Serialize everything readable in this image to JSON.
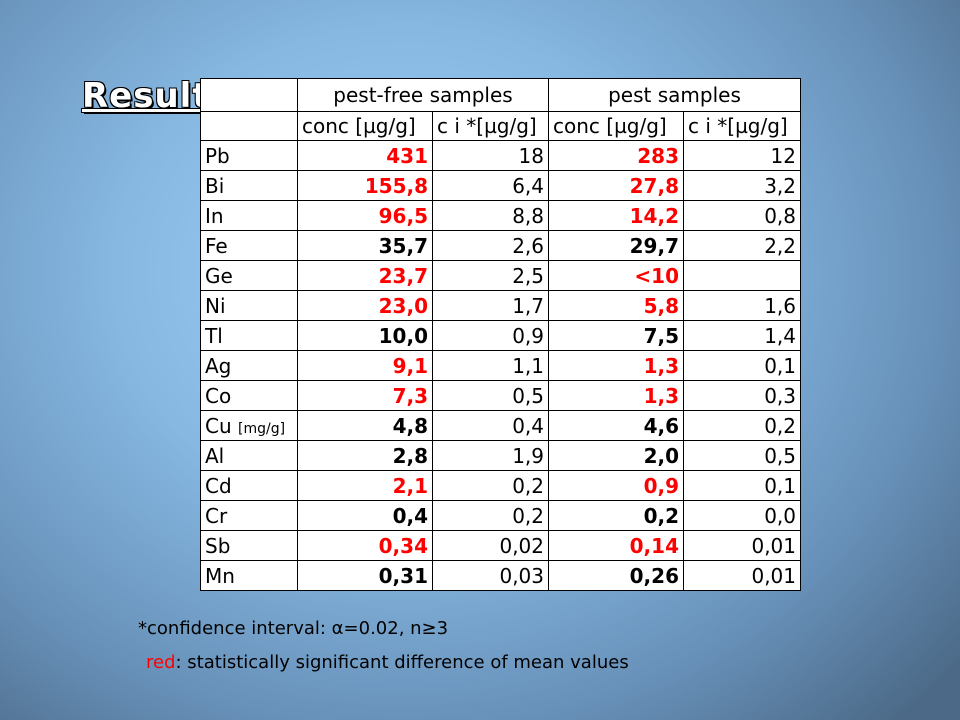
{
  "title": "Results:",
  "table": {
    "groups": [
      "pest-free samples",
      "pest samples"
    ],
    "subheaders": [
      "conc [µg/g]",
      "c i *[µg/g]",
      "conc [µg/g]",
      "c i *[µg/g]"
    ],
    "rows": [
      {
        "element": "Pb",
        "cells": [
          "431",
          "18",
          "283",
          "12"
        ],
        "significant": true
      },
      {
        "element": "Bi",
        "cells": [
          "155,8",
          "6,4",
          "27,8",
          "3,2"
        ],
        "significant": true
      },
      {
        "element": "In",
        "cells": [
          "96,5",
          "8,8",
          "14,2",
          "0,8"
        ],
        "significant": true
      },
      {
        "element": "Fe",
        "cells": [
          "35,7",
          "2,6",
          "29,7",
          "2,2"
        ],
        "significant": false
      },
      {
        "element": "Ge",
        "cells": [
          "23,7",
          "2,5",
          "<10",
          null
        ],
        "significant": true
      },
      {
        "element": "Ni",
        "cells": [
          "23,0",
          "1,7",
          "5,8",
          "1,6"
        ],
        "significant": true
      },
      {
        "element": "Tl",
        "cells": [
          "10,0",
          "0,9",
          "7,5",
          "1,4"
        ],
        "significant": false
      },
      {
        "element": "Ag",
        "cells": [
          "9,1",
          "1,1",
          "1,3",
          "0,1"
        ],
        "significant": true
      },
      {
        "element": "Co",
        "cells": [
          "7,3",
          "0,5",
          "1,3",
          "0,3"
        ],
        "significant": true
      },
      {
        "element": "Cu",
        "unit": "[mg/g]",
        "cells": [
          "4,8",
          "0,4",
          "4,6",
          "0,2"
        ],
        "significant": false
      },
      {
        "element": "Al",
        "cells": [
          "2,8",
          "1,9",
          "2,0",
          "0,5"
        ],
        "significant": false
      },
      {
        "element": "Cd",
        "cells": [
          "2,1",
          "0,2",
          "0,9",
          "0,1"
        ],
        "significant": true
      },
      {
        "element": "Cr",
        "cells": [
          "0,4",
          "0,2",
          "0,2",
          "0,0"
        ],
        "significant": false
      },
      {
        "element": "Sb",
        "cells": [
          "0,34",
          "0,02",
          "0,14",
          "0,01"
        ],
        "significant": true
      },
      {
        "element": "Mn",
        "cells": [
          "0,31",
          "0,03",
          "0,26",
          "0,01"
        ],
        "significant": false
      }
    ]
  },
  "footnotes": {
    "confidence": "*confidence interval: α=0.02, n≥3",
    "red_word": "red",
    "red_text": ": statistically significant difference of mean values"
  }
}
